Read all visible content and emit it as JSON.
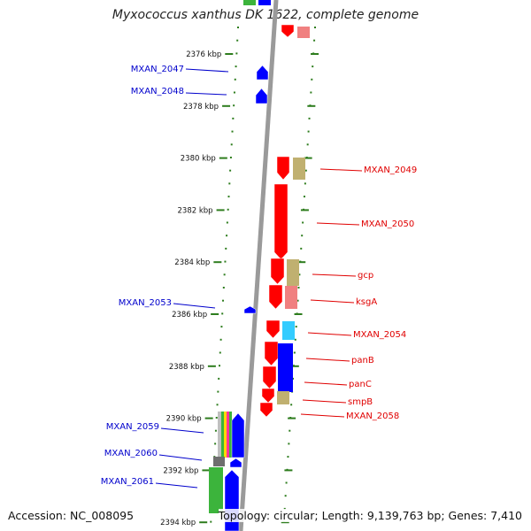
{
  "map": {
    "title": "Myxococcus xanthus DK 1622, complete genome",
    "accession": "Accession: NC_008095",
    "topology_summary": "Topology: circular; Length: 9,139,763 bp; Genes: 7,410"
  },
  "colors": {
    "forward_gene": "#ff0000",
    "reverse_gene": "#0000ff",
    "backbone": "#9a9a9a",
    "ticks": "#2e7d1e",
    "label_forward": "#e00000",
    "label_reverse": "#0000cc"
  },
  "ticks": [
    {
      "label": "2376 kbp",
      "kbp": 2376
    },
    {
      "label": "2378 kbp",
      "kbp": 2378
    },
    {
      "label": "2380 kbp",
      "kbp": 2380
    },
    {
      "label": "2382 kbp",
      "kbp": 2382
    },
    {
      "label": "2384 kbp",
      "kbp": 2384
    },
    {
      "label": "2386 kbp",
      "kbp": 2386
    },
    {
      "label": "2388 kbp",
      "kbp": 2388
    },
    {
      "label": "2390 kbp",
      "kbp": 2390
    },
    {
      "label": "2392 kbp",
      "kbp": 2392
    },
    {
      "label": "2394 kbp",
      "kbp": 2394
    }
  ],
  "genes_reverse": [
    {
      "name": "MXAN_2047"
    },
    {
      "name": "MXAN_2048"
    },
    {
      "name": "MXAN_2053"
    },
    {
      "name": "MXAN_2059"
    },
    {
      "name": "MXAN_2060"
    },
    {
      "name": "MXAN_2061"
    }
  ],
  "genes_forward": [
    {
      "name": "MXAN_2049"
    },
    {
      "name": "MXAN_2050"
    },
    {
      "name": "gcp"
    },
    {
      "name": "ksgA"
    },
    {
      "name": "MXAN_2054"
    },
    {
      "name": "panB"
    },
    {
      "name": "panC"
    },
    {
      "name": "smpB"
    },
    {
      "name": "MXAN_2058"
    }
  ]
}
